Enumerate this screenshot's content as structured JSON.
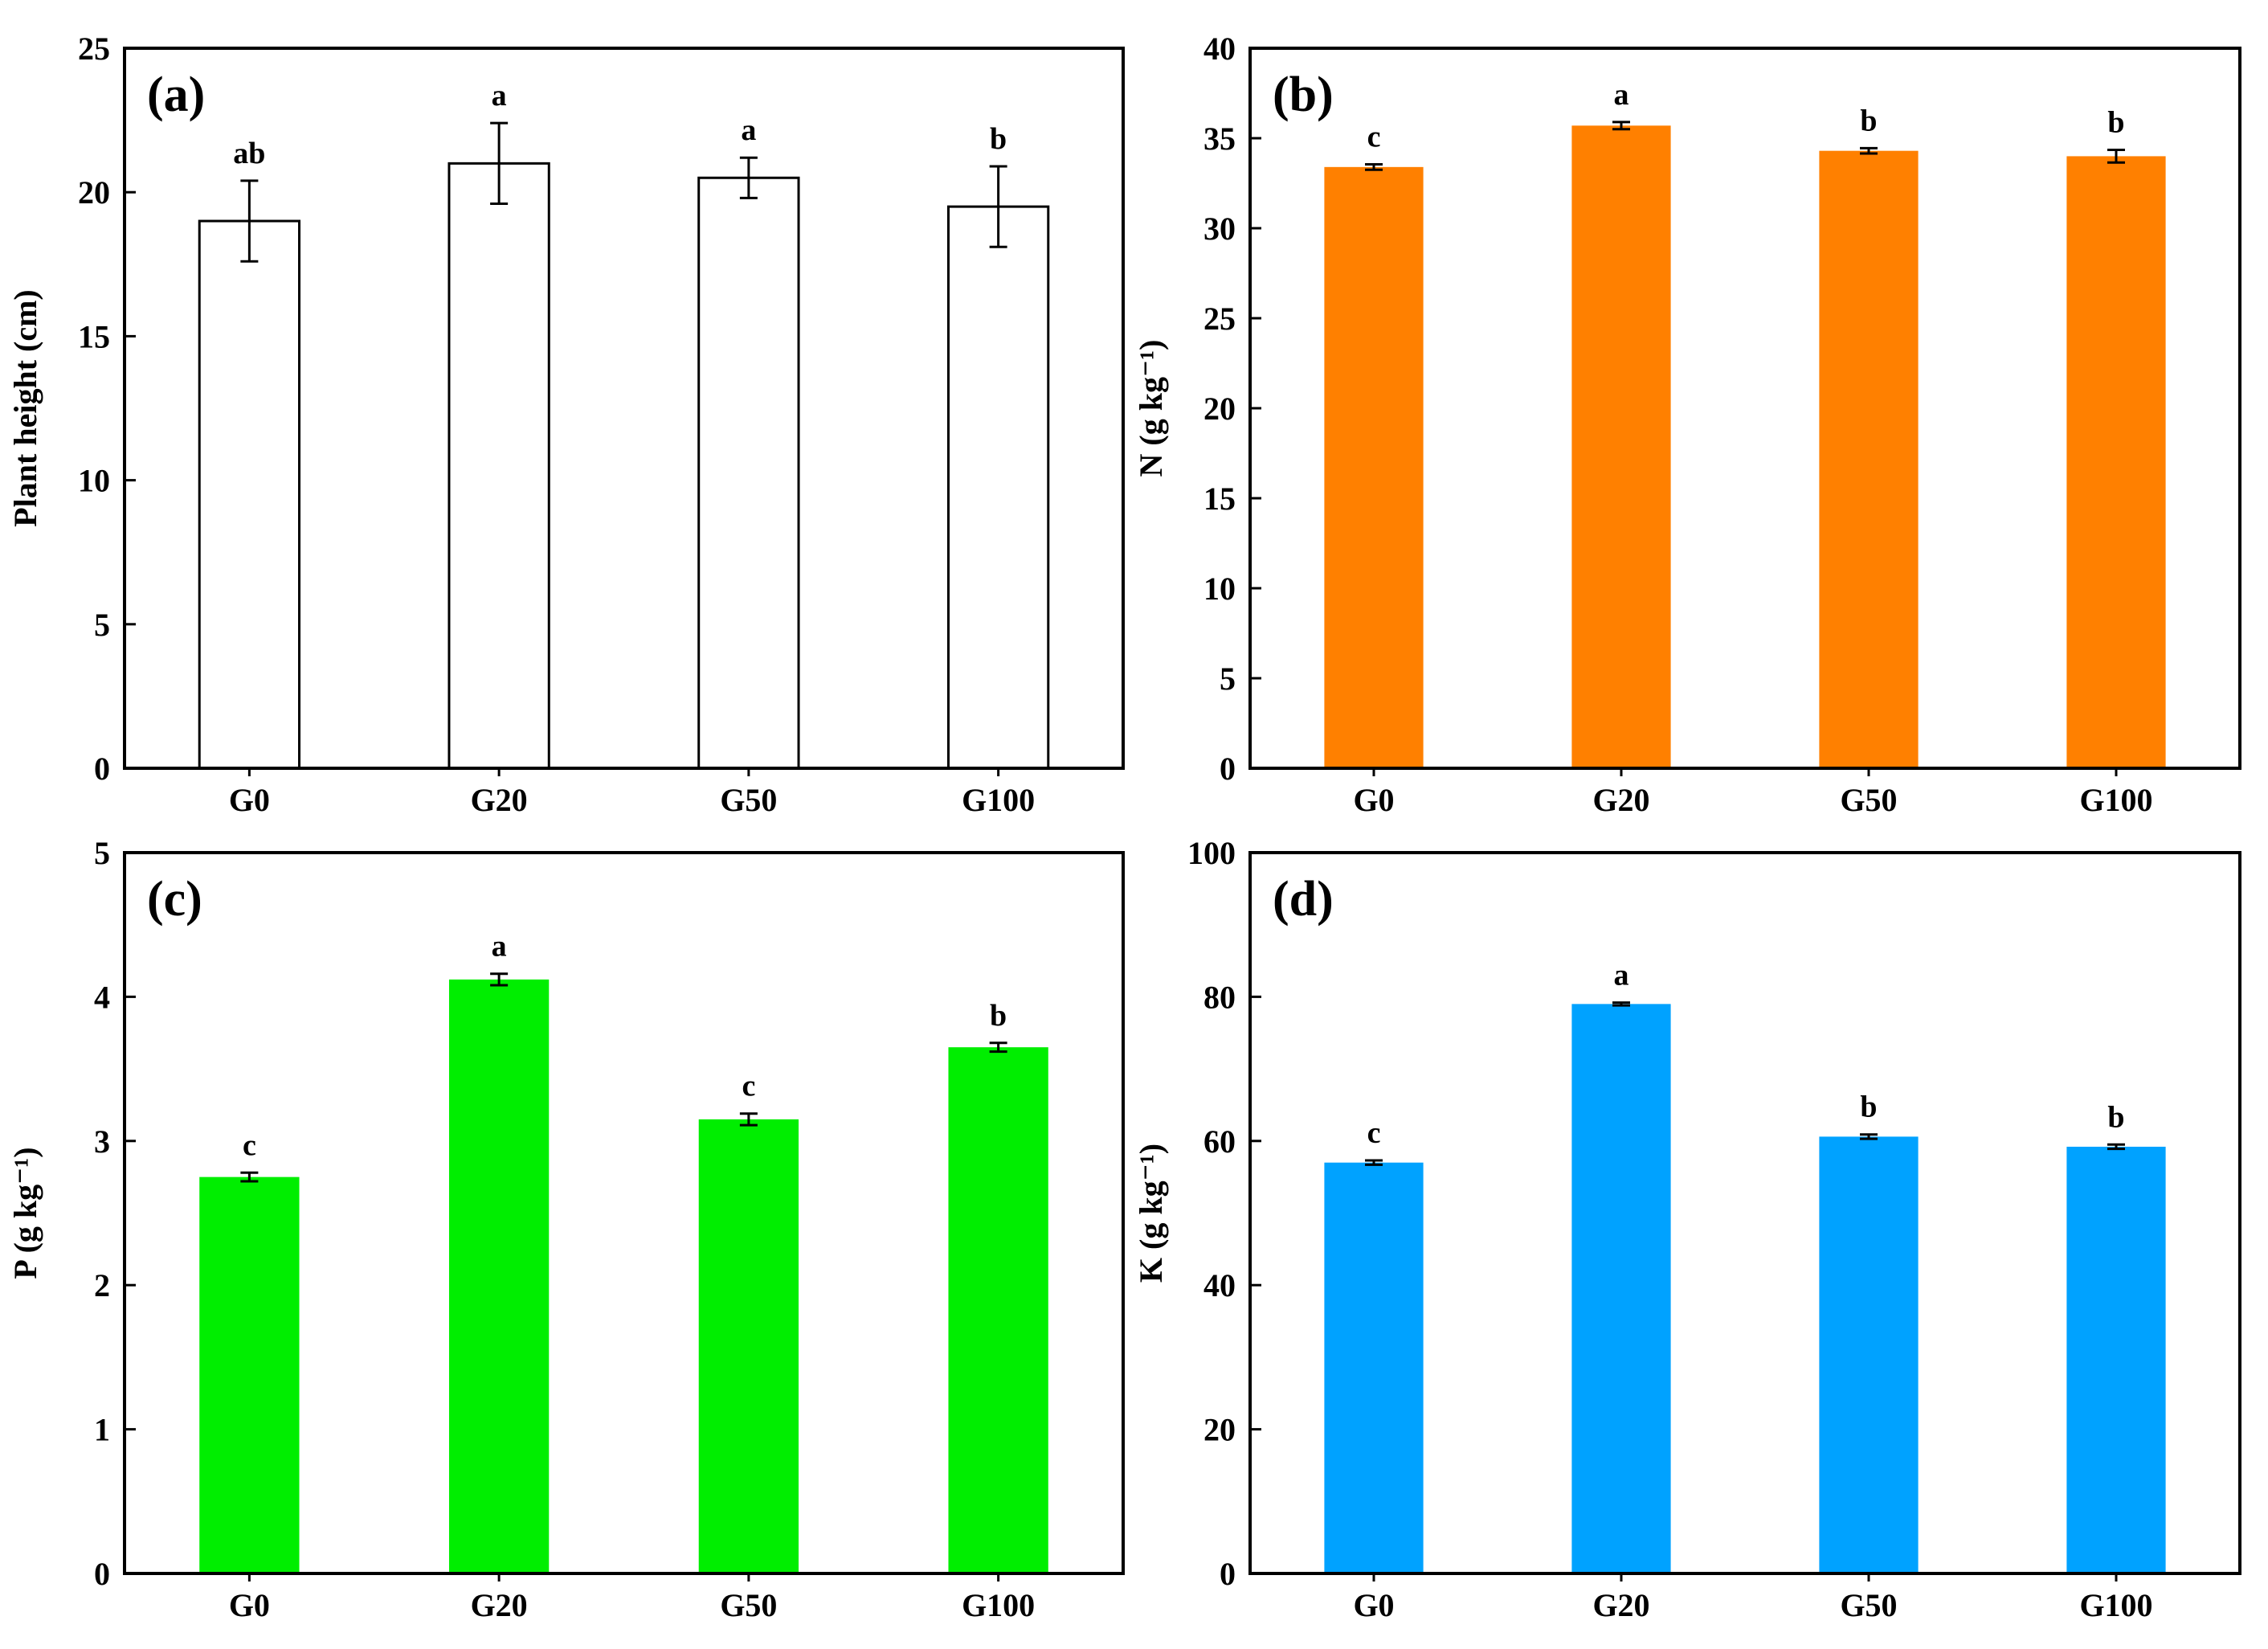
{
  "figure": {
    "categories": [
      "G0",
      "G20",
      "G50",
      "G100"
    ],
    "colors": {
      "panel_a": "#ffffff",
      "panel_b": "#ff8000",
      "panel_c": "#00ee00",
      "panel_d": "#00a2ff"
    }
  },
  "chart_data": [
    {
      "type": "bar",
      "panel_label": "(a)",
      "ylabel": "Plant height (cm)",
      "ylim": [
        0,
        25
      ],
      "yticks": [
        "0",
        "5",
        "10",
        "15",
        "20",
        "25"
      ],
      "categories": [
        "G0",
        "G20",
        "G50",
        "G100"
      ],
      "values": [
        19.0,
        21.0,
        20.5,
        19.5
      ],
      "errors": [
        1.4,
        1.4,
        0.7,
        1.4
      ],
      "significance": [
        "ab",
        "a",
        "a",
        "b"
      ]
    },
    {
      "type": "bar",
      "panel_label": "(b)",
      "ylabel": "N (g kg⁻¹)",
      "ylim": [
        0,
        40
      ],
      "yticks": [
        "0",
        "5",
        "10",
        "15",
        "20",
        "25",
        "30",
        "35",
        "40"
      ],
      "categories": [
        "G0",
        "G20",
        "G50",
        "G100"
      ],
      "values": [
        33.4,
        35.7,
        34.3,
        34.0
      ],
      "errors": [
        0.15,
        0.2,
        0.15,
        0.35
      ],
      "significance": [
        "c",
        "a",
        "b",
        "b"
      ]
    },
    {
      "type": "bar",
      "panel_label": "(c)",
      "ylabel": "P (g kg⁻¹)",
      "ylim": [
        0,
        5
      ],
      "yticks": [
        "0",
        "1",
        "2",
        "3",
        "4",
        "5"
      ],
      "categories": [
        "G0",
        "G20",
        "G50",
        "G100"
      ],
      "values": [
        2.75,
        4.12,
        3.15,
        3.65
      ],
      "errors": [
        0.03,
        0.04,
        0.04,
        0.03
      ],
      "significance": [
        "c",
        "a",
        "c",
        "b"
      ]
    },
    {
      "type": "bar",
      "panel_label": "(d)",
      "ylabel": "K (g kg⁻¹)",
      "ylim": [
        0,
        100
      ],
      "yticks": [
        "0",
        "20",
        "40",
        "60",
        "80",
        "100"
      ],
      "categories": [
        "G0",
        "G20",
        "G50",
        "G100"
      ],
      "values": [
        57.0,
        79.0,
        60.6,
        59.2
      ],
      "errors": [
        0.3,
        0.2,
        0.3,
        0.3
      ],
      "significance": [
        "c",
        "a",
        "b",
        "b"
      ]
    }
  ]
}
